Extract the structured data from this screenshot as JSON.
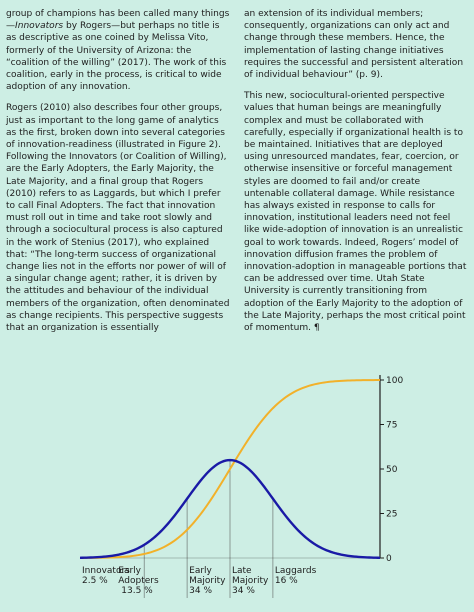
{
  "article": {
    "left_column": {
      "p1_a": "group of champions has been called many things—",
      "p1_em": "Innovators",
      "p1_b": " by Rogers—but perhaps no title is as descriptive as one coined by Melissa Vito, formerly of the University of Arizona: the “coalition of the willing” (2017). The work of this coalition, early in the process, is critical to wide adoption of any innovation.",
      "p2": "Rogers (2010) also describes four other groups, just as important to the long game of analytics as the first, broken down into several categories of innovation-readiness (illustrated in Figure 2). Following the Innovators (or Coalition of Willing), are the Early Adopters, the Early Majority, the Late Majority, and a final group that Rogers (2010) refers to as Laggards, but which I prefer to call Final Adopters. The fact that innovation must roll out in time and take root slowly and through a sociocultural process is also captured in the work of Stenius (2017), who explained that: “The long-term success of organizational change lies not in the efforts nor power of will of a singular change agent; rather, it is driven by the attitudes and behaviour of the individual members of the organization, often denominated as change recipients. This perspective suggests that an organization is essentially"
    },
    "right_column": {
      "p1": "an extension of its individual members; consequently, organizations can only act and change through these members. Hence, the implementation of lasting change initiatives requires the successful and persistent alteration of individual behaviour” (p. 9).",
      "p2": "This new, sociocultural-oriented perspective values that human beings are meaningfully complex and must be collaborated with carefully, especially if organizational health is to be maintained. Initiatives that are deployed using unresourced mandates, fear, coercion, or otherwise insensitive or forceful management styles are doomed to fail and/or create untenable collateral damage. While resistance has always existed in response to calls for innovation, institutional leaders need not feel like wide-adoption of innovation is an unrealistic goal to work towards. Indeed, Rogers’ model of innovation diffusion frames the problem of innovation-adoption in manageable portions that can be addressed over time. Utah State University is currently transitioning from adoption of the Early Majority to the adoption of the Late Majority, perhaps the most critical point of momentum. ¶"
    }
  },
  "colors": {
    "background": "#cdeee4",
    "bell_curve": "#1a1aa6",
    "s_curve": "#f2b12a",
    "axis": "#1e1e1e",
    "dividers": "#8a9a95"
  },
  "chart_data": {
    "type": "line",
    "xlabel": "",
    "ylabel": "",
    "ylim": [
      0,
      100
    ],
    "yticks": [
      "0",
      "25",
      "50",
      "75",
      "100"
    ],
    "x_domain": [
      -3.5,
      3.5
    ],
    "series": [
      {
        "kind": "normal-density",
        "peak_y": 55,
        "color": "#1a1aa6"
      },
      {
        "kind": "cumulative-adoption",
        "color": "#f2b12a"
      }
    ],
    "segments": [
      {
        "line1": "Innovators",
        "line2": "2.5 %",
        "line3": ""
      },
      {
        "line1": "Early",
        "line2": "Adopters",
        "line3": "13.5 %"
      },
      {
        "line1": "Early",
        "line2": "Majority",
        "line3": "34 %"
      },
      {
        "line1": "Late",
        "line2": "Majority",
        "line3": "34 %"
      },
      {
        "line1": "Laggards",
        "line2": "16 %",
        "line3": ""
      }
    ],
    "divider_sd": [
      -2,
      -1,
      0,
      1
    ]
  }
}
